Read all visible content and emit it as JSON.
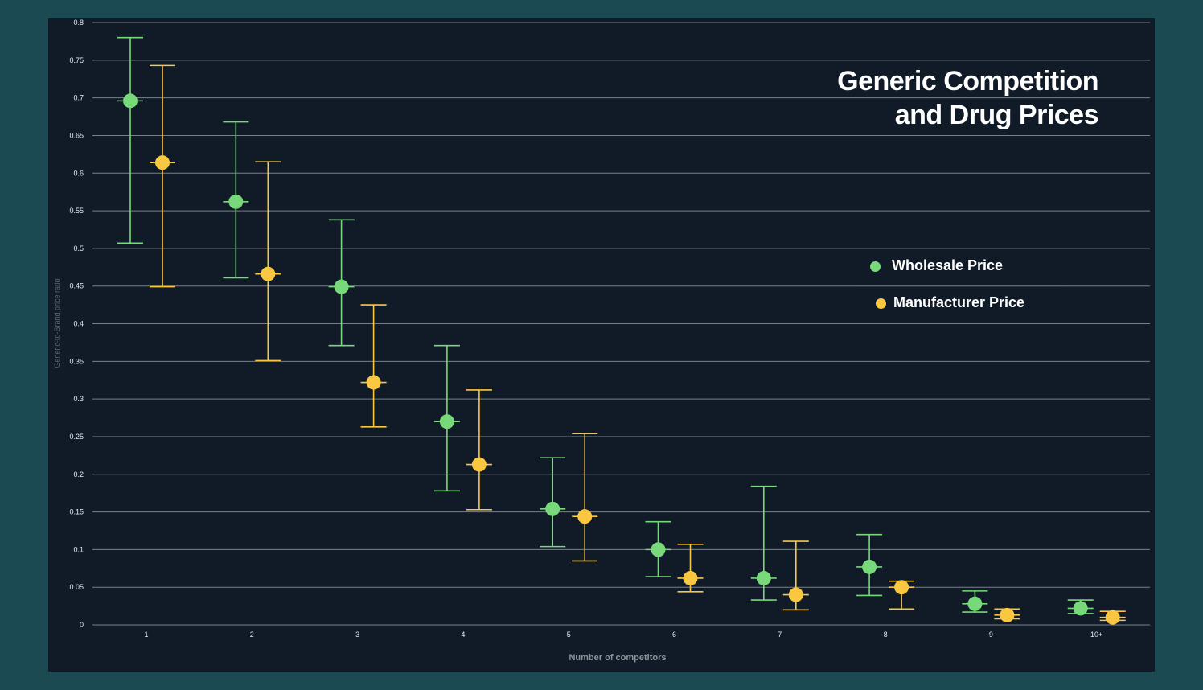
{
  "colors": {
    "wholesale": "#78d97a",
    "manufacturer": "#f9c740",
    "background": "#111b27",
    "outer": "#1b4a52"
  },
  "chart_data": {
    "type": "scatter",
    "title_line1": "Generic Competition",
    "title_line2": "and Drug Prices",
    "xlabel": "Number of competitors",
    "ylabel": "Generic-to-Brand price ratio",
    "ylim": [
      0,
      0.8
    ],
    "yticks": [
      "0",
      "0.05",
      "0.1",
      "0.15",
      "0.2",
      "0.25",
      "0.3",
      "0.35",
      "0.4",
      "0.45",
      "0.5",
      "0.55",
      "0.6",
      "0.65",
      "0.7",
      "0.75",
      "0.8"
    ],
    "categories": [
      "1",
      "2",
      "3",
      "4",
      "5",
      "6",
      "7",
      "8",
      "9",
      "10+"
    ],
    "grid": true,
    "legend_position": "right",
    "series": [
      {
        "name": "Wholesale Price",
        "values": [
          0.696,
          0.562,
          0.449,
          0.27,
          0.154,
          0.1,
          0.062,
          0.077,
          0.028,
          0.022
        ],
        "upper": [
          0.78,
          0.668,
          0.538,
          0.371,
          0.222,
          0.137,
          0.184,
          0.12,
          0.045,
          0.033
        ],
        "lower": [
          0.507,
          0.461,
          0.371,
          0.178,
          0.104,
          0.064,
          0.033,
          0.039,
          0.017,
          0.015
        ]
      },
      {
        "name": "Manufacturer Price",
        "values": [
          0.614,
          0.466,
          0.322,
          0.213,
          0.144,
          0.062,
          0.04,
          0.05,
          0.013,
          0.01
        ],
        "upper": [
          0.743,
          0.615,
          0.425,
          0.312,
          0.254,
          0.107,
          0.111,
          0.058,
          0.021,
          0.018
        ],
        "lower": [
          0.449,
          0.351,
          0.263,
          0.153,
          0.085,
          0.044,
          0.02,
          0.021,
          0.008,
          0.006
        ]
      }
    ]
  }
}
